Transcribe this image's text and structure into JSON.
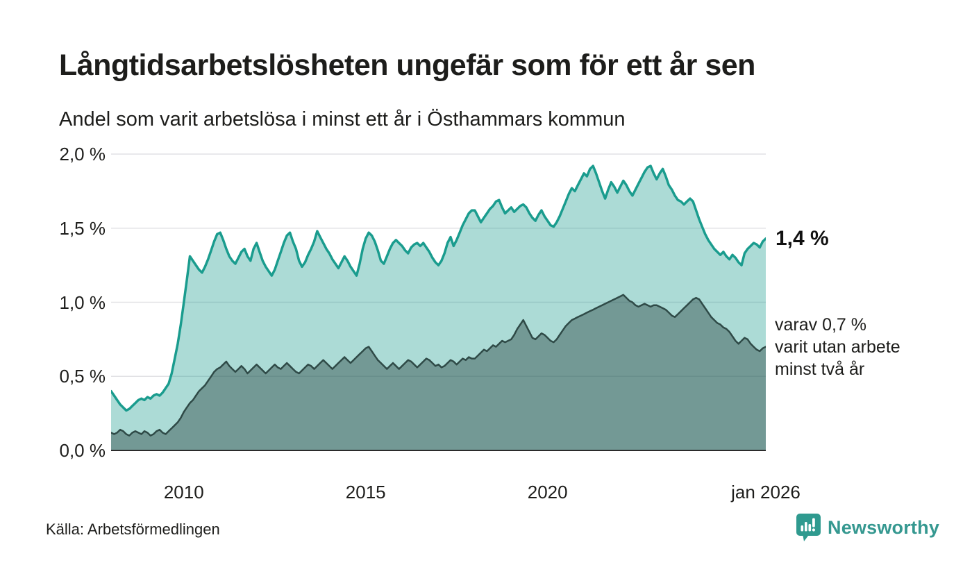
{
  "header": {
    "title": "Långtidsarbetslösheten ungefär som för ett år sen",
    "subtitle": "Andel som varit arbetslösa i minst ett år i Östhammars kommun"
  },
  "palette": {
    "background": "#ffffff",
    "text": "#1d1d1b",
    "grid": "#e2e2e5",
    "axis": "#2b2b2b",
    "brand_teal": "#359890"
  },
  "chart_data": {
    "type": "area",
    "title": "Långtidsarbetslösheten ungefär som för ett år sen",
    "subtitle": "Andel som varit arbetslösa i minst ett år i Östhammars kommun",
    "x_start_year": 2008,
    "x_end_year": 2026,
    "points_per_year": 12,
    "grid": "horizontal-only",
    "y_axis": {
      "max": 2.0,
      "ticks": [
        {
          "label": "0,0 %",
          "value": 0.0
        },
        {
          "label": "0,5 %",
          "value": 0.5
        },
        {
          "label": "1,0 %",
          "value": 1.0
        },
        {
          "label": "1,5 %",
          "value": 1.5
        },
        {
          "label": "2,0 %",
          "value": 2.0
        }
      ]
    },
    "x_axis": {
      "ticks": [
        {
          "label": "2010",
          "year": 2010
        },
        {
          "label": "2015",
          "year": 2015
        },
        {
          "label": "2020",
          "year": 2020
        },
        {
          "label": "jan 2026",
          "year": 2026
        }
      ]
    },
    "series": [
      {
        "name": "Andel som varit arbetslösa i minst ett år",
        "line_color": "#1a9c8e",
        "fill_color": "rgba(26,156,142,0.36)",
        "line_width": 3.5,
        "latest_label": "1,4 %",
        "values": [
          0.4,
          0.37,
          0.34,
          0.31,
          0.29,
          0.27,
          0.28,
          0.3,
          0.32,
          0.34,
          0.35,
          0.34,
          0.36,
          0.35,
          0.37,
          0.38,
          0.37,
          0.39,
          0.42,
          0.45,
          0.52,
          0.62,
          0.72,
          0.85,
          1.0,
          1.15,
          1.31,
          1.28,
          1.25,
          1.22,
          1.2,
          1.24,
          1.29,
          1.35,
          1.41,
          1.46,
          1.47,
          1.42,
          1.36,
          1.31,
          1.28,
          1.26,
          1.3,
          1.34,
          1.36,
          1.31,
          1.28,
          1.36,
          1.4,
          1.34,
          1.28,
          1.24,
          1.21,
          1.18,
          1.22,
          1.28,
          1.34,
          1.4,
          1.45,
          1.47,
          1.41,
          1.36,
          1.28,
          1.24,
          1.27,
          1.32,
          1.36,
          1.41,
          1.48,
          1.44,
          1.4,
          1.36,
          1.33,
          1.29,
          1.26,
          1.23,
          1.27,
          1.31,
          1.28,
          1.24,
          1.21,
          1.18,
          1.26,
          1.36,
          1.43,
          1.47,
          1.45,
          1.41,
          1.35,
          1.28,
          1.26,
          1.31,
          1.36,
          1.4,
          1.42,
          1.4,
          1.38,
          1.35,
          1.33,
          1.37,
          1.39,
          1.4,
          1.38,
          1.4,
          1.37,
          1.34,
          1.3,
          1.27,
          1.25,
          1.28,
          1.33,
          1.4,
          1.44,
          1.38,
          1.42,
          1.47,
          1.52,
          1.56,
          1.6,
          1.62,
          1.62,
          1.58,
          1.54,
          1.57,
          1.6,
          1.63,
          1.65,
          1.68,
          1.69,
          1.64,
          1.6,
          1.62,
          1.64,
          1.61,
          1.63,
          1.65,
          1.66,
          1.64,
          1.6,
          1.57,
          1.55,
          1.59,
          1.62,
          1.58,
          1.55,
          1.52,
          1.51,
          1.54,
          1.58,
          1.63,
          1.68,
          1.73,
          1.77,
          1.75,
          1.79,
          1.83,
          1.87,
          1.85,
          1.9,
          1.92,
          1.87,
          1.81,
          1.75,
          1.7,
          1.76,
          1.81,
          1.78,
          1.74,
          1.78,
          1.82,
          1.79,
          1.75,
          1.72,
          1.76,
          1.8,
          1.84,
          1.88,
          1.91,
          1.92,
          1.87,
          1.83,
          1.87,
          1.9,
          1.85,
          1.79,
          1.76,
          1.72,
          1.69,
          1.68,
          1.66,
          1.68,
          1.7,
          1.68,
          1.62,
          1.56,
          1.51,
          1.46,
          1.42,
          1.39,
          1.36,
          1.34,
          1.32,
          1.34,
          1.31,
          1.29,
          1.32,
          1.3,
          1.27,
          1.25,
          1.33,
          1.36,
          1.38,
          1.4,
          1.39,
          1.37,
          1.41,
          1.43
        ]
      },
      {
        "name": "varav utan arbete minst två år",
        "line_color": "#2f4a47",
        "fill_color": "rgba(47,74,71,0.45)",
        "line_width": 2.5,
        "latest_label": "varav 0,7 %",
        "values": [
          0.12,
          0.11,
          0.12,
          0.14,
          0.13,
          0.11,
          0.1,
          0.12,
          0.13,
          0.12,
          0.11,
          0.13,
          0.12,
          0.1,
          0.11,
          0.13,
          0.14,
          0.12,
          0.11,
          0.13,
          0.15,
          0.17,
          0.19,
          0.22,
          0.26,
          0.29,
          0.32,
          0.34,
          0.37,
          0.4,
          0.42,
          0.44,
          0.47,
          0.5,
          0.53,
          0.55,
          0.56,
          0.58,
          0.6,
          0.57,
          0.55,
          0.53,
          0.55,
          0.57,
          0.55,
          0.52,
          0.54,
          0.56,
          0.58,
          0.56,
          0.54,
          0.52,
          0.54,
          0.56,
          0.58,
          0.56,
          0.55,
          0.57,
          0.59,
          0.57,
          0.55,
          0.53,
          0.52,
          0.54,
          0.56,
          0.58,
          0.57,
          0.55,
          0.57,
          0.59,
          0.61,
          0.59,
          0.57,
          0.55,
          0.57,
          0.59,
          0.61,
          0.63,
          0.61,
          0.59,
          0.61,
          0.63,
          0.65,
          0.67,
          0.69,
          0.7,
          0.67,
          0.64,
          0.61,
          0.59,
          0.57,
          0.55,
          0.57,
          0.59,
          0.57,
          0.55,
          0.57,
          0.59,
          0.61,
          0.6,
          0.58,
          0.56,
          0.58,
          0.6,
          0.62,
          0.61,
          0.59,
          0.57,
          0.58,
          0.56,
          0.57,
          0.59,
          0.61,
          0.6,
          0.58,
          0.6,
          0.62,
          0.61,
          0.63,
          0.62,
          0.62,
          0.64,
          0.66,
          0.68,
          0.67,
          0.69,
          0.71,
          0.7,
          0.72,
          0.74,
          0.73,
          0.74,
          0.75,
          0.78,
          0.82,
          0.85,
          0.88,
          0.84,
          0.8,
          0.76,
          0.75,
          0.77,
          0.79,
          0.78,
          0.76,
          0.74,
          0.73,
          0.75,
          0.78,
          0.81,
          0.84,
          0.86,
          0.88,
          0.89,
          0.9,
          0.91,
          0.92,
          0.93,
          0.94,
          0.95,
          0.96,
          0.97,
          0.98,
          0.99,
          1.0,
          1.01,
          1.02,
          1.03,
          1.04,
          1.05,
          1.03,
          1.01,
          1.0,
          0.98,
          0.97,
          0.98,
          0.99,
          0.98,
          0.97,
          0.98,
          0.98,
          0.97,
          0.96,
          0.95,
          0.93,
          0.91,
          0.9,
          0.92,
          0.94,
          0.96,
          0.98,
          1.0,
          1.02,
          1.03,
          1.02,
          0.99,
          0.96,
          0.93,
          0.9,
          0.88,
          0.86,
          0.85,
          0.83,
          0.82,
          0.8,
          0.77,
          0.74,
          0.72,
          0.74,
          0.76,
          0.75,
          0.72,
          0.7,
          0.68,
          0.67,
          0.69,
          0.7
        ]
      }
    ],
    "annotations": {
      "latest_total": "1,4 %",
      "subset_line1": "varav 0,7 %",
      "subset_line2": "varit utan arbete",
      "subset_line3": "minst två år"
    }
  },
  "footer": {
    "source": "Källa: Arbetsförmedlingen",
    "brand": "Newsworthy"
  }
}
